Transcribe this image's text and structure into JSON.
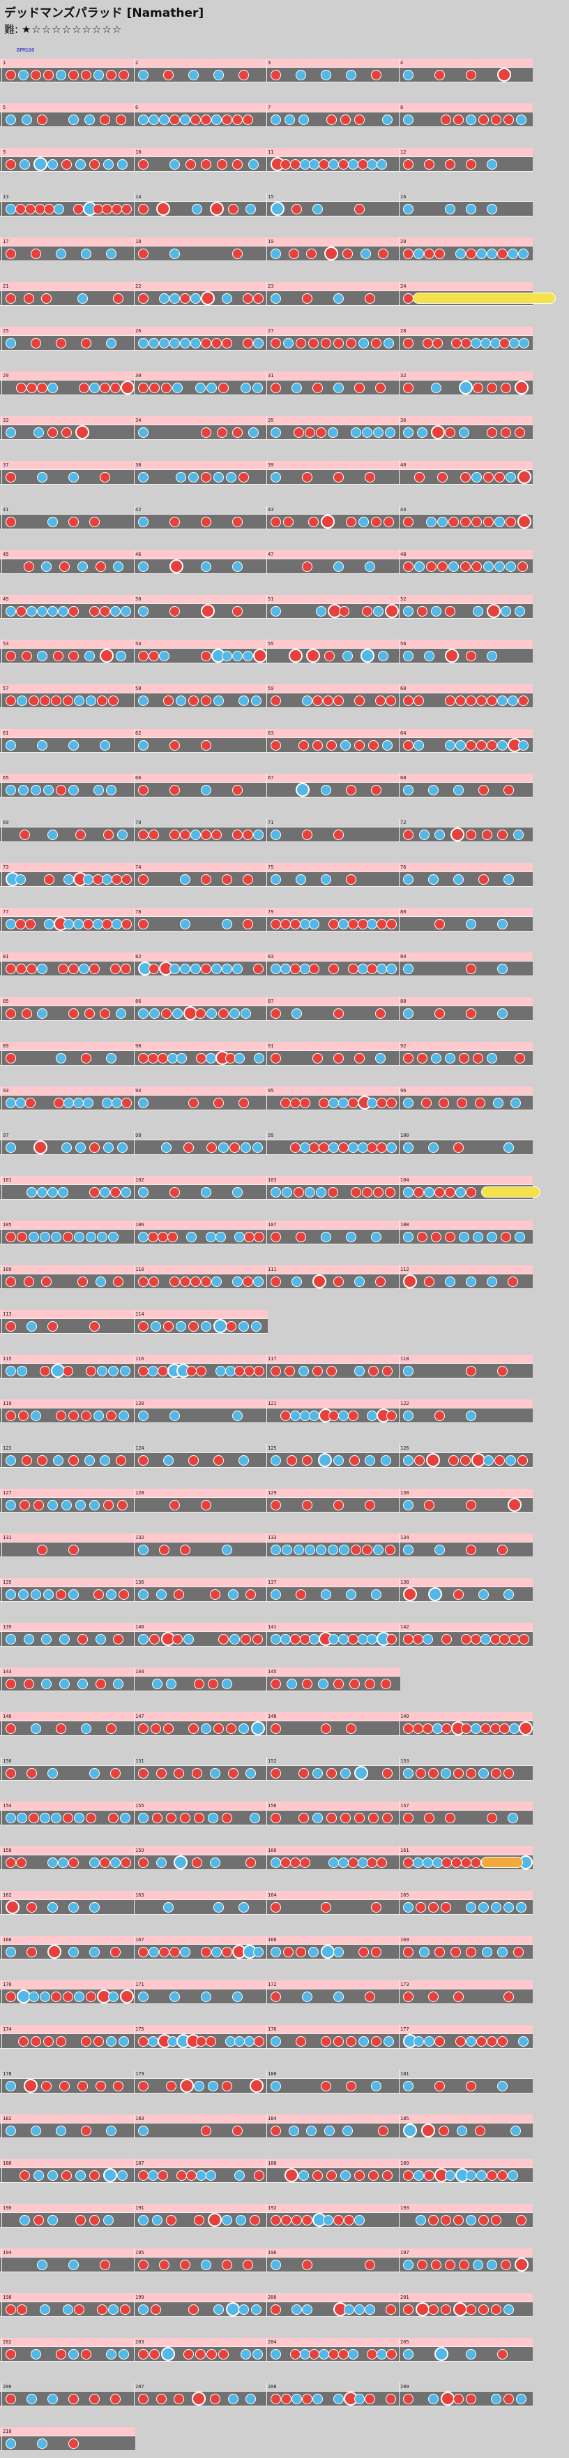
{
  "header": {
    "title": "デッドマンズパラッド [Namather]",
    "difficulty_label": "難:",
    "stars": "★☆☆☆☆☆☆☆☆☆"
  },
  "chart_data": {
    "type": "taiko-chart",
    "title": "デッドマンズパラッド [Namather]",
    "measures_per_row": 4,
    "colors": {
      "don": "#e8413c",
      "ka": "#52b8e8",
      "lane": "#707070",
      "gogo": "#ffc8cc",
      "drumroll": "#f5e24a",
      "balloon": "#f2a93b"
    },
    "rows": [
      {
        "m": [
          1,
          2,
          3,
          4
        ],
        "ann": "BPM180"
      },
      {
        "m": [
          5,
          6,
          7,
          8
        ],
        "ann": ""
      },
      {
        "m": [
          9,
          10,
          11,
          12
        ],
        "ann": ""
      },
      {
        "m": [
          13,
          14,
          15,
          16
        ],
        "ann": ""
      },
      {
        "m": [
          17,
          18,
          19,
          20
        ],
        "ann": ""
      },
      {
        "m": [
          21,
          22,
          23,
          24
        ],
        "ann": ""
      },
      {
        "m": [
          25,
          26,
          27,
          28
        ],
        "ann": ""
      },
      {
        "m": [
          29,
          30,
          31,
          32
        ],
        "ann": ""
      },
      {
        "m": [
          33,
          34,
          35,
          36
        ],
        "ann": ""
      },
      {
        "m": [
          37,
          38,
          39,
          40
        ],
        "ann": ""
      },
      {
        "m": [
          41,
          42,
          43,
          44
        ],
        "ann": ""
      },
      {
        "m": [
          45,
          46,
          47,
          48
        ],
        "ann": ""
      },
      {
        "m": [
          49,
          50,
          51,
          52
        ],
        "ann": ""
      },
      {
        "m": [
          53,
          54,
          55,
          56
        ],
        "ann": ""
      },
      {
        "m": [
          57,
          58,
          59,
          60
        ],
        "ann": ""
      },
      {
        "m": [
          61,
          62,
          63,
          64
        ],
        "ann": ""
      },
      {
        "m": [
          65,
          66,
          67,
          68
        ],
        "ann": ""
      },
      {
        "m": [
          69,
          70,
          71,
          72
        ],
        "ann": ""
      },
      {
        "m": [
          73,
          74,
          75,
          76
        ],
        "ann": ""
      },
      {
        "m": [
          77,
          78,
          79,
          80
        ],
        "ann": ""
      },
      {
        "m": [
          81,
          82,
          83,
          84
        ],
        "ann": ""
      },
      {
        "m": [
          85,
          86,
          87,
          88
        ],
        "ann": ""
      },
      {
        "m": [
          89,
          90,
          91,
          92
        ],
        "ann": ""
      },
      {
        "m": [
          93,
          94,
          95,
          96
        ],
        "ann": ""
      },
      {
        "m": [
          97,
          98,
          99,
          100
        ],
        "ann": ""
      },
      {
        "m": [
          101,
          102,
          103,
          104
        ],
        "ann": ""
      },
      {
        "m": [
          105,
          106,
          107,
          108
        ],
        "ann": ""
      },
      {
        "m": [
          109,
          110,
          111,
          112
        ],
        "ann": ""
      },
      {
        "m": [
          113,
          114
        ],
        "ann": ""
      },
      {
        "m": [
          115,
          116,
          117,
          118
        ],
        "ann": ""
      },
      {
        "m": [
          119,
          120,
          121,
          122
        ],
        "ann": ""
      },
      {
        "m": [
          123,
          124,
          125,
          126
        ],
        "ann": ""
      },
      {
        "m": [
          127,
          128,
          129,
          130
        ],
        "ann": ""
      },
      {
        "m": [
          131,
          132,
          133,
          134
        ],
        "ann": ""
      },
      {
        "m": [
          135,
          136,
          137,
          138
        ],
        "ann": ""
      },
      {
        "m": [
          139,
          140,
          141,
          142
        ],
        "ann": ""
      },
      {
        "m": [
          143,
          144,
          145
        ],
        "ann": ""
      },
      {
        "m": [
          146,
          147,
          148,
          149
        ],
        "ann": ""
      },
      {
        "m": [
          150,
          151,
          152,
          153
        ],
        "ann": ""
      },
      {
        "m": [
          154,
          155,
          156,
          157
        ],
        "ann": ""
      },
      {
        "m": [
          158,
          159,
          160,
          161
        ],
        "ann": ""
      },
      {
        "m": [
          162,
          163,
          164,
          165
        ],
        "ann": ""
      },
      {
        "m": [
          166,
          167,
          168,
          169
        ],
        "ann": ""
      },
      {
        "m": [
          170,
          171,
          172,
          173
        ],
        "ann": ""
      },
      {
        "m": [
          174,
          175,
          176,
          177
        ],
        "ann": ""
      },
      {
        "m": [
          178,
          179,
          180,
          181
        ],
        "ann": ""
      },
      {
        "m": [
          182,
          183,
          184,
          185
        ],
        "ann": ""
      },
      {
        "m": [
          186,
          187,
          188,
          189
        ],
        "ann": ""
      },
      {
        "m": [
          190,
          191,
          192,
          193
        ],
        "ann": ""
      },
      {
        "m": [
          194,
          195,
          196,
          197
        ],
        "ann": ""
      },
      {
        "m": [
          198,
          199,
          200,
          201
        ],
        "ann": ""
      },
      {
        "m": [
          202,
          203,
          204,
          205
        ],
        "ann": ""
      },
      {
        "m": [
          206,
          207,
          208,
          209
        ],
        "ann": ""
      },
      {
        "m": [
          210
        ],
        "ann": ""
      }
    ]
  }
}
